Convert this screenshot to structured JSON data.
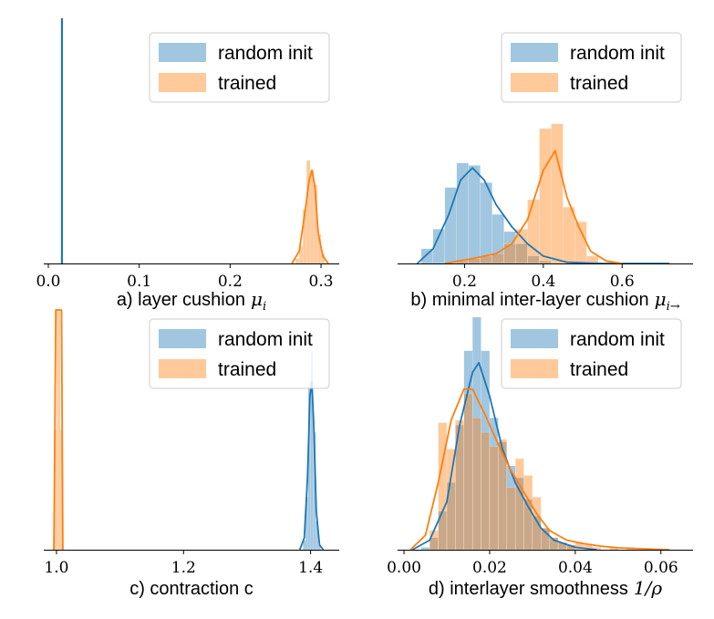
{
  "colors": {
    "random_init": "#1f77b4",
    "trained": "#ff7f0e"
  },
  "chart_data": [
    {
      "type": "histogram",
      "xlabel": "a) layer cushion",
      "xlabel_math": "μ",
      "xlabel_sub": "i",
      "xlim": [
        -0.005,
        0.32
      ],
      "xticks": [
        "0.0",
        "0.1",
        "0.2",
        "0.3"
      ],
      "tick_values": [
        0.0,
        0.1,
        0.2,
        0.3
      ],
      "legend": {
        "entries": [
          "random init",
          "trained"
        ],
        "loc": "upper right"
      },
      "series": [
        {
          "name": "random init",
          "dist": "spike",
          "value": 0.015,
          "height": 1.0
        },
        {
          "name": "trained",
          "bins": [
            [
              0.272,
              0.276,
              0.02
            ],
            [
              0.276,
              0.28,
              0.07
            ],
            [
              0.28,
              0.284,
              0.22
            ],
            [
              0.284,
              0.288,
              0.42
            ],
            [
              0.288,
              0.292,
              0.38
            ],
            [
              0.292,
              0.296,
              0.32
            ],
            [
              0.296,
              0.3,
              0.12
            ],
            [
              0.3,
              0.304,
              0.04
            ]
          ],
          "kde": [
            [
              0.268,
              0.0
            ],
            [
              0.276,
              0.05
            ],
            [
              0.282,
              0.2
            ],
            [
              0.287,
              0.34
            ],
            [
              0.29,
              0.38
            ],
            [
              0.293,
              0.32
            ],
            [
              0.297,
              0.12
            ],
            [
              0.302,
              0.03
            ],
            [
              0.308,
              0.0
            ]
          ]
        }
      ],
      "ymax": 1.0
    },
    {
      "type": "histogram",
      "xlabel": "b) minimal inter-layer cushion",
      "xlabel_math": "μ",
      "xlabel_sub": "i→",
      "xlim": [
        0.03,
        0.78
      ],
      "xticks": [
        "0.2",
        "0.4",
        "0.6"
      ],
      "tick_values": [
        0.2,
        0.4,
        0.6
      ],
      "legend": {
        "entries": [
          "random init",
          "trained"
        ],
        "loc": "upper right"
      },
      "series": [
        {
          "name": "random init",
          "bins": [
            [
              0.09,
              0.12,
              0.06
            ],
            [
              0.12,
              0.15,
              0.14
            ],
            [
              0.15,
              0.18,
              0.31
            ],
            [
              0.18,
              0.21,
              0.41
            ],
            [
              0.21,
              0.24,
              0.4
            ],
            [
              0.24,
              0.27,
              0.33
            ],
            [
              0.27,
              0.3,
              0.2
            ],
            [
              0.3,
              0.33,
              0.13
            ],
            [
              0.33,
              0.36,
              0.08
            ],
            [
              0.36,
              0.39,
              0.03
            ],
            [
              0.39,
              0.42,
              0.01
            ]
          ],
          "kde": [
            [
              0.08,
              0.0
            ],
            [
              0.12,
              0.06
            ],
            [
              0.16,
              0.2
            ],
            [
              0.19,
              0.34
            ],
            [
              0.22,
              0.39
            ],
            [
              0.25,
              0.34
            ],
            [
              0.28,
              0.24
            ],
            [
              0.32,
              0.15
            ],
            [
              0.36,
              0.08
            ],
            [
              0.4,
              0.03
            ],
            [
              0.46,
              0.005
            ],
            [
              0.55,
              0.0
            ],
            [
              0.72,
              0.0
            ]
          ]
        },
        {
          "name": "trained",
          "bins": [
            [
              0.18,
              0.21,
              0.01
            ],
            [
              0.21,
              0.24,
              0.02
            ],
            [
              0.24,
              0.27,
              0.03
            ],
            [
              0.27,
              0.3,
              0.04
            ],
            [
              0.3,
              0.33,
              0.08
            ],
            [
              0.33,
              0.36,
              0.14
            ],
            [
              0.36,
              0.39,
              0.26
            ],
            [
              0.39,
              0.42,
              0.55
            ],
            [
              0.42,
              0.45,
              0.57
            ],
            [
              0.45,
              0.48,
              0.23
            ],
            [
              0.48,
              0.51,
              0.17
            ],
            [
              0.51,
              0.54,
              0.03
            ]
          ],
          "kde": [
            [
              0.15,
              0.0
            ],
            [
              0.22,
              0.02
            ],
            [
              0.28,
              0.04
            ],
            [
              0.32,
              0.08
            ],
            [
              0.36,
              0.18
            ],
            [
              0.4,
              0.38
            ],
            [
              0.43,
              0.46
            ],
            [
              0.46,
              0.27
            ],
            [
              0.49,
              0.15
            ],
            [
              0.52,
              0.05
            ],
            [
              0.56,
              0.01
            ],
            [
              0.6,
              0.0
            ]
          ]
        }
      ],
      "ymax": 1.0
    },
    {
      "type": "histogram",
      "xlabel": "c) contraction c",
      "xlim": [
        0.98,
        1.445
      ],
      "xticks": [
        "1.0",
        "1.2",
        "1.4"
      ],
      "tick_values": [
        1.0,
        1.2,
        1.4
      ],
      "legend": {
        "entries": [
          "random init",
          "trained"
        ],
        "loc": "upper right"
      },
      "series": [
        {
          "name": "random init",
          "bins": [
            [
              1.388,
              1.392,
              0.04
            ],
            [
              1.392,
              1.396,
              0.22
            ],
            [
              1.396,
              1.4,
              0.68
            ],
            [
              1.4,
              1.404,
              0.83
            ],
            [
              1.404,
              1.408,
              0.49
            ],
            [
              1.408,
              1.412,
              0.12
            ],
            [
              1.412,
              1.416,
              0.02
            ]
          ],
          "kde": [
            [
              1.383,
              0.0
            ],
            [
              1.39,
              0.05
            ],
            [
              1.395,
              0.3
            ],
            [
              1.399,
              0.64
            ],
            [
              1.402,
              0.7
            ],
            [
              1.405,
              0.52
            ],
            [
              1.409,
              0.16
            ],
            [
              1.414,
              0.02
            ],
            [
              1.42,
              0.0
            ]
          ]
        },
        {
          "name": "trained",
          "bins": [
            [
              0.997,
              1.0,
              0.5
            ],
            [
              1.0,
              1.003,
              1.0
            ],
            [
              1.003,
              1.006,
              1.0
            ],
            [
              1.006,
              1.009,
              0.5
            ]
          ],
          "kde": [
            [
              0.996,
              0.0
            ],
            [
              0.999,
              1.0
            ],
            [
              1.008,
              1.0
            ],
            [
              1.01,
              0.0
            ]
          ]
        }
      ],
      "ymax": 1.0
    },
    {
      "type": "histogram",
      "xlabel": "d) interlayer smoothness",
      "xlabel_math": "1/ρ",
      "xlim": [
        -0.0015,
        0.0675
      ],
      "xticks": [
        "0.00",
        "0.02",
        "0.04",
        "0.06"
      ],
      "tick_values": [
        0.0,
        0.02,
        0.04,
        0.06
      ],
      "legend": {
        "entries": [
          "random init",
          "trained"
        ],
        "loc": "upper right"
      },
      "series": [
        {
          "name": "random init",
          "bins": [
            [
              0.004,
              0.006,
              0.01
            ],
            [
              0.006,
              0.008,
              0.05
            ],
            [
              0.008,
              0.01,
              0.16
            ],
            [
              0.01,
              0.012,
              0.28
            ],
            [
              0.012,
              0.014,
              0.52
            ],
            [
              0.014,
              0.016,
              0.83
            ],
            [
              0.016,
              0.018,
              0.97
            ],
            [
              0.018,
              0.02,
              0.83
            ],
            [
              0.02,
              0.022,
              0.55
            ],
            [
              0.022,
              0.024,
              0.45
            ],
            [
              0.024,
              0.026,
              0.35
            ],
            [
              0.026,
              0.028,
              0.3
            ],
            [
              0.028,
              0.03,
              0.21
            ],
            [
              0.03,
              0.032,
              0.14
            ],
            [
              0.032,
              0.034,
              0.09
            ],
            [
              0.034,
              0.036,
              0.05
            ],
            [
              0.036,
              0.038,
              0.03
            ],
            [
              0.038,
              0.04,
              0.02
            ]
          ],
          "kde": [
            [
              0.002,
              0.0
            ],
            [
              0.006,
              0.04
            ],
            [
              0.01,
              0.2
            ],
            [
              0.013,
              0.52
            ],
            [
              0.016,
              0.74
            ],
            [
              0.0175,
              0.78
            ],
            [
              0.02,
              0.64
            ],
            [
              0.023,
              0.42
            ],
            [
              0.026,
              0.28
            ],
            [
              0.029,
              0.18
            ],
            [
              0.032,
              0.09
            ],
            [
              0.035,
              0.04
            ],
            [
              0.04,
              0.01
            ],
            [
              0.045,
              0.0
            ]
          ]
        },
        {
          "name": "trained",
          "bins": [
            [
              0.006,
              0.008,
              0.08
            ],
            [
              0.008,
              0.01,
              0.53
            ],
            [
              0.01,
              0.012,
              0.42
            ],
            [
              0.012,
              0.014,
              0.54
            ],
            [
              0.014,
              0.016,
              0.65
            ],
            [
              0.016,
              0.018,
              0.55
            ],
            [
              0.018,
              0.02,
              0.49
            ],
            [
              0.02,
              0.022,
              0.43
            ],
            [
              0.022,
              0.024,
              0.46
            ],
            [
              0.024,
              0.026,
              0.26
            ],
            [
              0.026,
              0.028,
              0.38
            ],
            [
              0.028,
              0.03,
              0.31
            ],
            [
              0.03,
              0.032,
              0.22
            ],
            [
              0.032,
              0.034,
              0.09
            ],
            [
              0.034,
              0.036,
              0.05
            ],
            [
              0.036,
              0.038,
              0.03
            ],
            [
              0.038,
              0.04,
              0.02
            ],
            [
              0.04,
              0.042,
              0.03
            ],
            [
              0.042,
              0.044,
              0.02
            ],
            [
              0.044,
              0.046,
              0.01
            ],
            [
              0.048,
              0.05,
              0.01
            ],
            [
              0.052,
              0.054,
              0.01
            ]
          ],
          "kde": [
            [
              0.0015,
              0.0
            ],
            [
              0.005,
              0.06
            ],
            [
              0.008,
              0.28
            ],
            [
              0.011,
              0.54
            ],
            [
              0.014,
              0.67
            ],
            [
              0.016,
              0.67
            ],
            [
              0.019,
              0.56
            ],
            [
              0.022,
              0.44
            ],
            [
              0.025,
              0.33
            ],
            [
              0.028,
              0.24
            ],
            [
              0.031,
              0.15
            ],
            [
              0.034,
              0.08
            ],
            [
              0.038,
              0.04
            ],
            [
              0.042,
              0.025
            ],
            [
              0.046,
              0.015
            ],
            [
              0.05,
              0.008
            ],
            [
              0.055,
              0.004
            ],
            [
              0.062,
              0.0
            ]
          ]
        }
      ],
      "ymax": 1.0
    }
  ]
}
